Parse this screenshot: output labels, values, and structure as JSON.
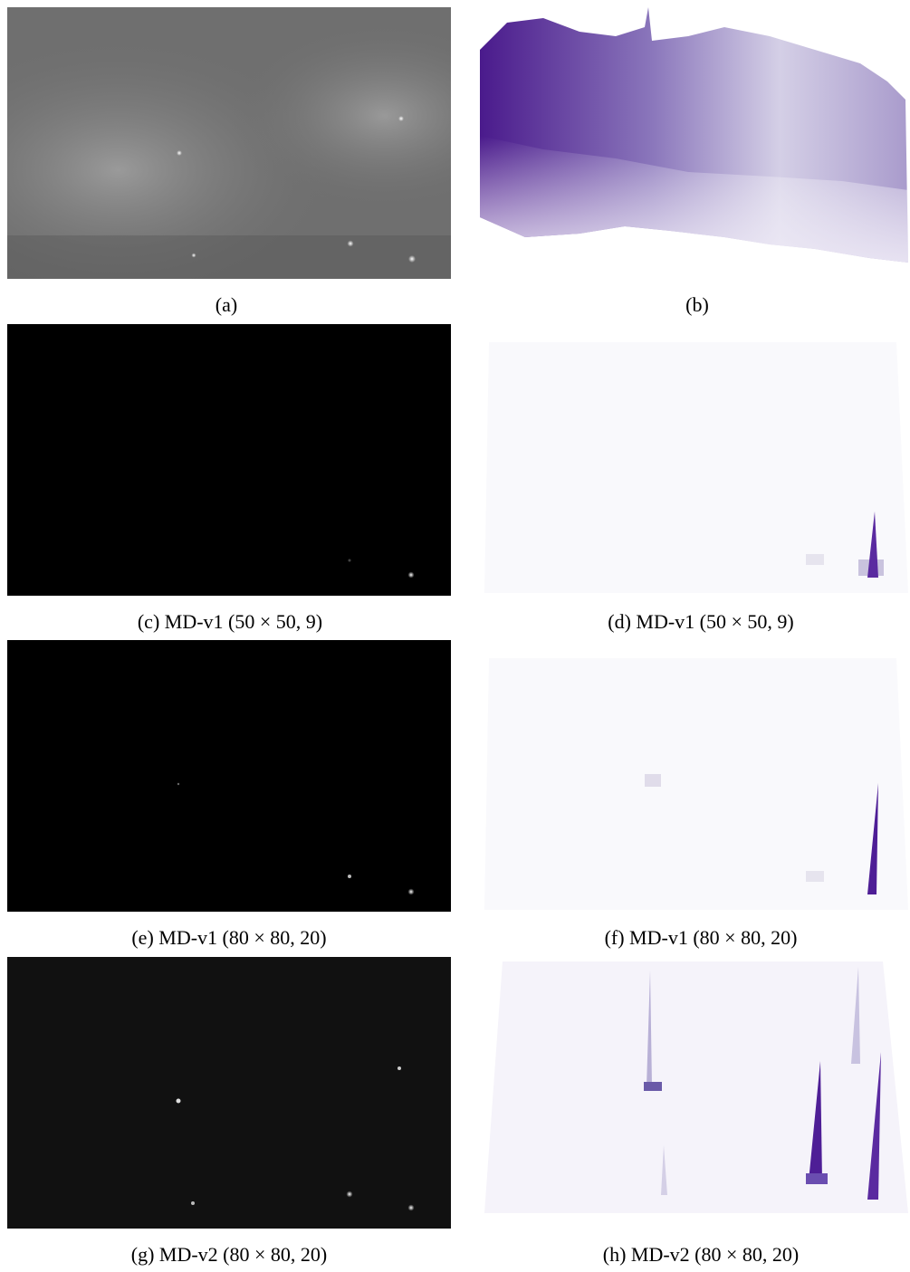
{
  "figure": {
    "panels": [
      {
        "caption": "(a)"
      },
      {
        "caption": "(b)"
      },
      {
        "caption": "(c) MD-v1 (50 × 50, 9)"
      },
      {
        "caption": "(d) MD-v1 (50 × 50, 9)"
      },
      {
        "caption": "(e) MD-v1 (80 × 80, 20)"
      },
      {
        "caption": "(f) MD-v1 (80 × 80, 20)"
      },
      {
        "caption": "(g) MD-v2 (80 × 80, 20)"
      },
      {
        "caption": "(h) MD-v2 (80 × 80, 20)"
      }
    ]
  }
}
